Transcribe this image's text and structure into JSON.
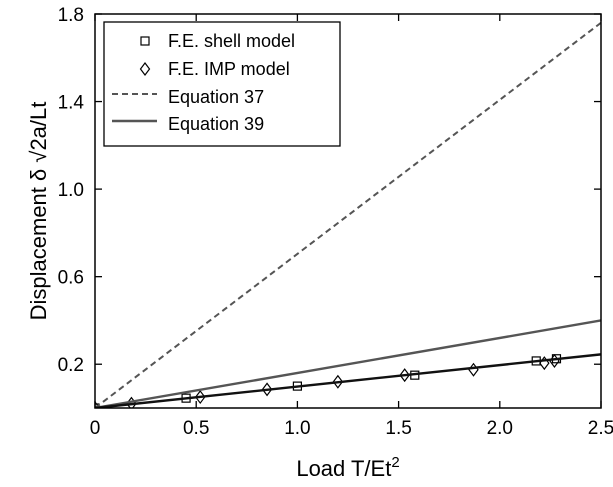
{
  "chart_data": {
    "type": "scatter",
    "title": "",
    "xlabel": "Load T/Et",
    "xlabel_superscript": "2",
    "ylabel": "Displacement δ √2a/Lt",
    "xlim": [
      0,
      2.5
    ],
    "ylim": [
      0,
      1.8
    ],
    "x_ticks": [
      "0",
      "0.5",
      "1.0",
      "1.5",
      "2.0",
      "2.5"
    ],
    "x_tick_values": [
      0,
      0.5,
      1.0,
      1.5,
      2.0,
      2.5
    ],
    "y_ticks": [
      "0.2",
      "0.6",
      "1.0",
      "1.4",
      "1.8"
    ],
    "y_tick_values": [
      0.2,
      0.6,
      1.0,
      1.4,
      1.8
    ],
    "grid": false,
    "legend_position": "top-left",
    "series": [
      {
        "name": "F.E. shell model",
        "kind": "marker",
        "marker": "square",
        "x": [
          0.0,
          0.45,
          1.0,
          1.58,
          2.18,
          2.28
        ],
        "y": [
          0.0,
          0.045,
          0.1,
          0.15,
          0.215,
          0.225
        ]
      },
      {
        "name": "F.E. IMP model",
        "kind": "marker",
        "marker": "diamond",
        "x": [
          0.0,
          0.18,
          0.52,
          0.85,
          1.2,
          1.53,
          1.87,
          2.22,
          2.27
        ],
        "y": [
          0.0,
          0.02,
          0.05,
          0.085,
          0.12,
          0.15,
          0.175,
          0.205,
          0.215
        ]
      },
      {
        "name": "Equation 37",
        "kind": "line",
        "style": "dashed",
        "color": "#555555",
        "x": [
          0,
          2.5
        ],
        "y": [
          0,
          1.76
        ]
      },
      {
        "name": "Equation 39",
        "kind": "line",
        "style": "solid",
        "color": "#555555",
        "x": [
          0,
          2.5
        ],
        "y": [
          0,
          0.4
        ]
      },
      {
        "name": "",
        "kind": "line",
        "style": "solid",
        "color": "#111111",
        "x": [
          0,
          2.5
        ],
        "y": [
          0,
          0.245
        ]
      }
    ]
  }
}
